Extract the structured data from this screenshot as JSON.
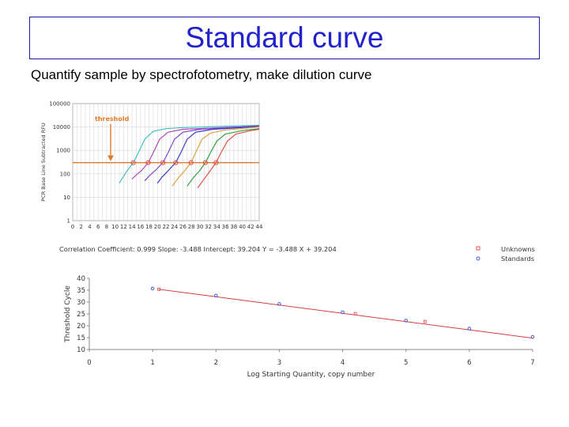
{
  "slide": {
    "title": "Standard curve",
    "subtitle": "Quantify sample by spectrofotometry, make dilution curve"
  },
  "colors": {
    "title": "#2222cc",
    "threshold": "#e07a2a",
    "fit_line": "#d04040",
    "grid": "#d8d8d8",
    "unknowns": "#e05050",
    "standards": "#4a5ad8"
  },
  "chart_data": [
    {
      "type": "line",
      "ylabel": "PCR Base Line Subtracted RFU",
      "yscale": "log",
      "xlim": [
        0,
        44
      ],
      "ylim": [
        1,
        100000
      ],
      "x_ticks": [
        "0",
        "2",
        "4",
        "6",
        "8",
        "10",
        "12",
        "14",
        "16",
        "18",
        "20",
        "22",
        "24",
        "26",
        "28",
        "30",
        "32",
        "34",
        "36",
        "38",
        "40",
        "42",
        "44"
      ],
      "y_ticks": [
        "100000",
        "10000",
        "1000",
        "100",
        "10",
        "1"
      ],
      "threshold_label": "threshold",
      "threshold_value": 300,
      "threshold_crossings": [
        14.3,
        17.8,
        21.3,
        24.3,
        27.9,
        31.3,
        33.8
      ],
      "series": [
        {
          "color": "#40c0c8",
          "values": [
            [
              11.0,
              40
            ],
            [
              12.0,
              80
            ],
            [
              13.0,
              150
            ],
            [
              14.3,
              300
            ],
            [
              15.5,
              800
            ],
            [
              17.0,
              3000
            ],
            [
              19.0,
              6500
            ],
            [
              22.0,
              8500
            ],
            [
              26.0,
              9500
            ],
            [
              44.0,
              12000
            ]
          ]
        },
        {
          "color": "#b04ab8",
          "values": [
            [
              14.0,
              60
            ],
            [
              15.0,
              90
            ],
            [
              16.3,
              140
            ],
            [
              17.8,
              300
            ],
            [
              19.0,
              800
            ],
            [
              20.5,
              3000
            ],
            [
              22.5,
              6000
            ],
            [
              26.0,
              8000
            ],
            [
              44.0,
              11000
            ]
          ]
        },
        {
          "color": "#7a4ad0",
          "values": [
            [
              17.0,
              50
            ],
            [
              18.0,
              80
            ],
            [
              19.5,
              140
            ],
            [
              21.3,
              300
            ],
            [
              22.5,
              800
            ],
            [
              24.0,
              3000
            ],
            [
              26.0,
              6000
            ],
            [
              30.0,
              8000
            ],
            [
              44.0,
              11000
            ]
          ]
        },
        {
          "color": "#3a3ac0",
          "values": [
            [
              20.0,
              40
            ],
            [
              21.0,
              70
            ],
            [
              22.6,
              140
            ],
            [
              24.3,
              300
            ],
            [
              25.5,
              800
            ],
            [
              27.0,
              3000
            ],
            [
              29.0,
              6000
            ],
            [
              33.0,
              8000
            ],
            [
              44.0,
              10500
            ]
          ]
        },
        {
          "color": "#e0a040",
          "values": [
            [
              23.5,
              30
            ],
            [
              25.0,
              70
            ],
            [
              26.5,
              140
            ],
            [
              27.9,
              300
            ],
            [
              29.0,
              800
            ],
            [
              30.5,
              3000
            ],
            [
              32.5,
              5500
            ],
            [
              36.0,
              7500
            ],
            [
              44.0,
              10000
            ]
          ]
        },
        {
          "color": "#30a040",
          "values": [
            [
              27.0,
              30
            ],
            [
              28.5,
              70
            ],
            [
              30.0,
              140
            ],
            [
              31.3,
              300
            ],
            [
              32.5,
              800
            ],
            [
              34.0,
              2500
            ],
            [
              36.0,
              5000
            ],
            [
              40.0,
              7000
            ],
            [
              44.0,
              8500
            ]
          ]
        },
        {
          "color": "#e05050",
          "values": [
            [
              29.5,
              25
            ],
            [
              31.0,
              60
            ],
            [
              32.5,
              140
            ],
            [
              33.8,
              300
            ],
            [
              35.0,
              800
            ],
            [
              36.5,
              2500
            ],
            [
              38.5,
              5000
            ],
            [
              42.0,
              7000
            ],
            [
              44.0,
              8000
            ]
          ]
        }
      ]
    },
    {
      "type": "scatter",
      "stats_text": "Correlation Coefficient: 0.999   Slope: -3.488   Intercept: 39.204   Y = -3.488 X + 39.204",
      "xlabel": "Log Starting Quantity, copy number",
      "ylabel": "Threshold Cycle",
      "xlim": [
        0,
        7
      ],
      "ylim": [
        10,
        40
      ],
      "x_ticks": [
        "0",
        "1",
        "2",
        "3",
        "4",
        "5",
        "6",
        "7"
      ],
      "y_ticks": [
        "40",
        "35",
        "30",
        "25",
        "20",
        "15",
        "10"
      ],
      "slope": -3.488,
      "intercept": 39.204,
      "legend": [
        "Unknowns",
        "Standards"
      ],
      "legend_position": "top-right",
      "standards": [
        [
          1,
          35.7
        ],
        [
          2,
          32.7
        ],
        [
          3,
          29.2
        ],
        [
          4,
          25.7
        ],
        [
          5,
          22.2
        ],
        [
          6,
          18.8
        ],
        [
          7,
          15.3
        ]
      ],
      "unknowns": [
        [
          1.1,
          35.4
        ],
        [
          4.2,
          25.1
        ],
        [
          5.3,
          21.8
        ]
      ]
    }
  ]
}
